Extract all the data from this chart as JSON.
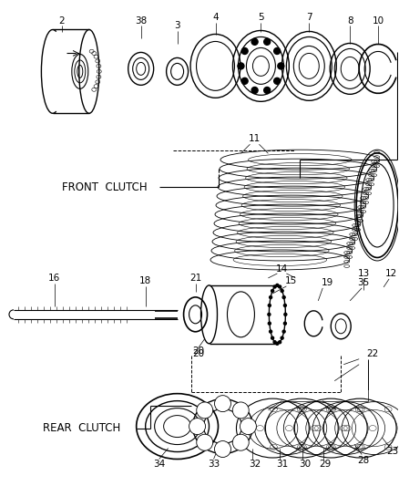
{
  "background_color": "#ffffff",
  "line_color": "#000000",
  "front_clutch_label": "FRONT  CLUTCH",
  "rear_clutch_label": "REAR  CLUTCH",
  "figsize": [
    4.38,
    5.33
  ],
  "dpi": 100
}
